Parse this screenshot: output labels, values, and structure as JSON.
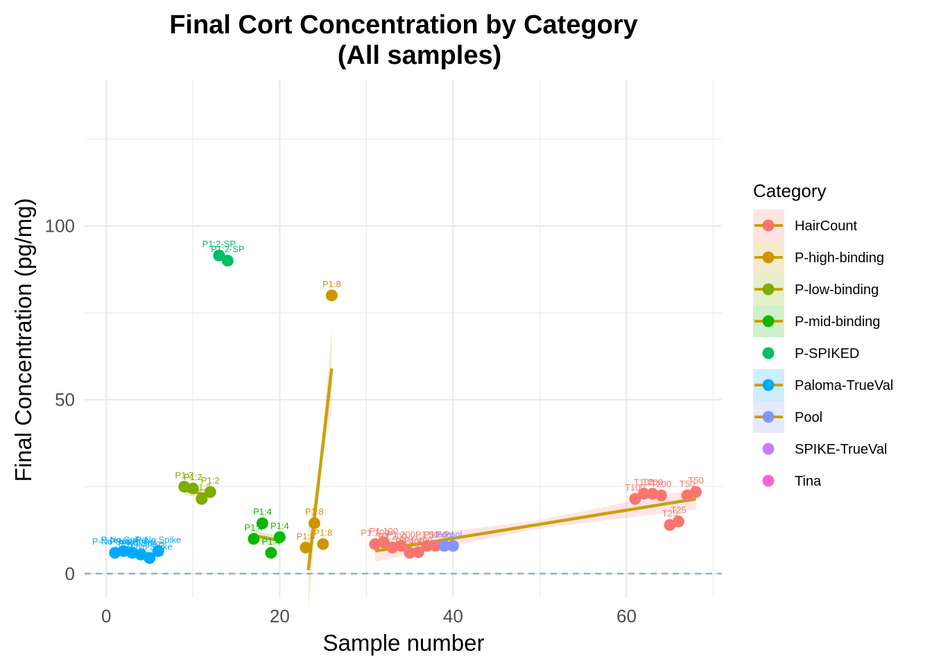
{
  "chart_data": {
    "type": "scatter",
    "title": "Final Cort Concentration by Category",
    "subtitle": "(All samples)",
    "xlabel": "Sample number",
    "ylabel": "Final Concentration (pg/mg)",
    "xlim": [
      -2.5,
      71
    ],
    "ylim": [
      -7,
      142
    ],
    "x_ticks": [
      0,
      20,
      40,
      60
    ],
    "y_ticks": [
      0,
      50,
      100
    ],
    "grid": true,
    "reference_line": {
      "y": 0,
      "style": "dashed",
      "color": "#8fb3c4"
    },
    "legend": {
      "title": "Category",
      "placement": "right"
    },
    "trend_color": "#c9a010",
    "series": [
      {
        "name": "HairCount",
        "color": "#F8766D",
        "points": [
          {
            "x": 31,
            "y": 8.5,
            "label": "P1:100"
          },
          {
            "x": 32,
            "y": 9,
            "label": "P1:100"
          },
          {
            "x": 33,
            "y": 7.5,
            "label": "P1:200"
          },
          {
            "x": 34,
            "y": 8,
            "label": "P1:200"
          },
          {
            "x": 35,
            "y": 6,
            "label": "P1:400"
          },
          {
            "x": 36,
            "y": 6.2,
            "label": "P1:400"
          },
          {
            "x": 37,
            "y": 8,
            "label": "P1:50"
          },
          {
            "x": 38,
            "y": 8,
            "label": "P1:50"
          },
          {
            "x": 61,
            "y": 21.5,
            "label": "T100"
          },
          {
            "x": 62,
            "y": 23,
            "label": "T100"
          },
          {
            "x": 63,
            "y": 23,
            "label": "T200"
          },
          {
            "x": 64,
            "y": 22.5,
            "label": "T200"
          },
          {
            "x": 65,
            "y": 14,
            "label": "T25"
          },
          {
            "x": 66,
            "y": 15,
            "label": "T25"
          },
          {
            "x": 67,
            "y": 22.5,
            "label": "T50"
          },
          {
            "x": 68,
            "y": 23.5,
            "label": "T50"
          }
        ],
        "trend": {
          "x": [
            31,
            68
          ],
          "y": [
            6.5,
            21.5
          ]
        }
      },
      {
        "name": "P-high-binding",
        "color": "#CD9600",
        "points": [
          {
            "x": 23,
            "y": 7.5,
            "label": "P1:8"
          },
          {
            "x": 24,
            "y": 14.5,
            "label": "P1:8"
          },
          {
            "x": 25,
            "y": 8.5,
            "label": "P1:8"
          },
          {
            "x": 26,
            "y": 80,
            "label": "P1:8"
          }
        ],
        "trend": {
          "x": [
            23.3,
            26
          ],
          "y": [
            1,
            59
          ]
        }
      },
      {
        "name": "P-low-binding",
        "color": "#7CAE00",
        "points": [
          {
            "x": 9,
            "y": 25,
            "label": "P1:2"
          },
          {
            "x": 10,
            "y": 24.5,
            "label": "P1:2"
          },
          {
            "x": 11,
            "y": 21.5,
            "label": "P1:2"
          },
          {
            "x": 12,
            "y": 23.5,
            "label": "P1:2"
          }
        ],
        "trend": {
          "x": [
            9,
            12
          ],
          "y": [
            24,
            22.5
          ]
        }
      },
      {
        "name": "P-mid-binding",
        "color": "#0CB702",
        "points": [
          {
            "x": 17,
            "y": 10,
            "label": "P1:4"
          },
          {
            "x": 18,
            "y": 14.5,
            "label": "P1:4"
          },
          {
            "x": 19,
            "y": 6,
            "label": "P1:4"
          },
          {
            "x": 20,
            "y": 10.5,
            "label": "P1:4"
          }
        ],
        "trend": {
          "x": [
            17,
            20
          ],
          "y": [
            11,
            9.5
          ]
        }
      },
      {
        "name": "P-SPIKED",
        "color": "#00BE67",
        "points": [
          {
            "x": 13,
            "y": 91.5,
            "label": "P1:2-SP"
          },
          {
            "x": 14,
            "y": 90,
            "label": "P1:2-SP"
          }
        ]
      },
      {
        "name": "Paloma-TrueVal",
        "color": "#00A9FF",
        "points": [
          {
            "x": 1,
            "y": 6,
            "label": "P-No Spike"
          },
          {
            "x": 2,
            "y": 6.5,
            "label": "P-No Spike"
          },
          {
            "x": 3,
            "y": 6,
            "label": "P-No Spike"
          },
          {
            "x": 4,
            "y": 5.5,
            "label": "P-No Spike"
          },
          {
            "x": 5,
            "y": 4.5,
            "label": "P-No Spike"
          },
          {
            "x": 6,
            "y": 6.5,
            "label": "P-No Spike"
          }
        ],
        "trend": {
          "x": [
            1,
            6
          ],
          "y": [
            6.5,
            5.5
          ]
        }
      },
      {
        "name": "Pool",
        "color": "#8494FF",
        "points": [
          {
            "x": 39,
            "y": 8,
            "label": "Pool"
          },
          {
            "x": 40,
            "y": 8,
            "label": "Pool"
          }
        ],
        "trend": {
          "x": [
            39,
            40
          ],
          "y": [
            8,
            8
          ]
        }
      },
      {
        "name": "SPIKE-TrueVal",
        "color": "#C77CFF",
        "points": []
      },
      {
        "name": "Tina",
        "color": "#FF61CC",
        "points": []
      }
    ]
  }
}
